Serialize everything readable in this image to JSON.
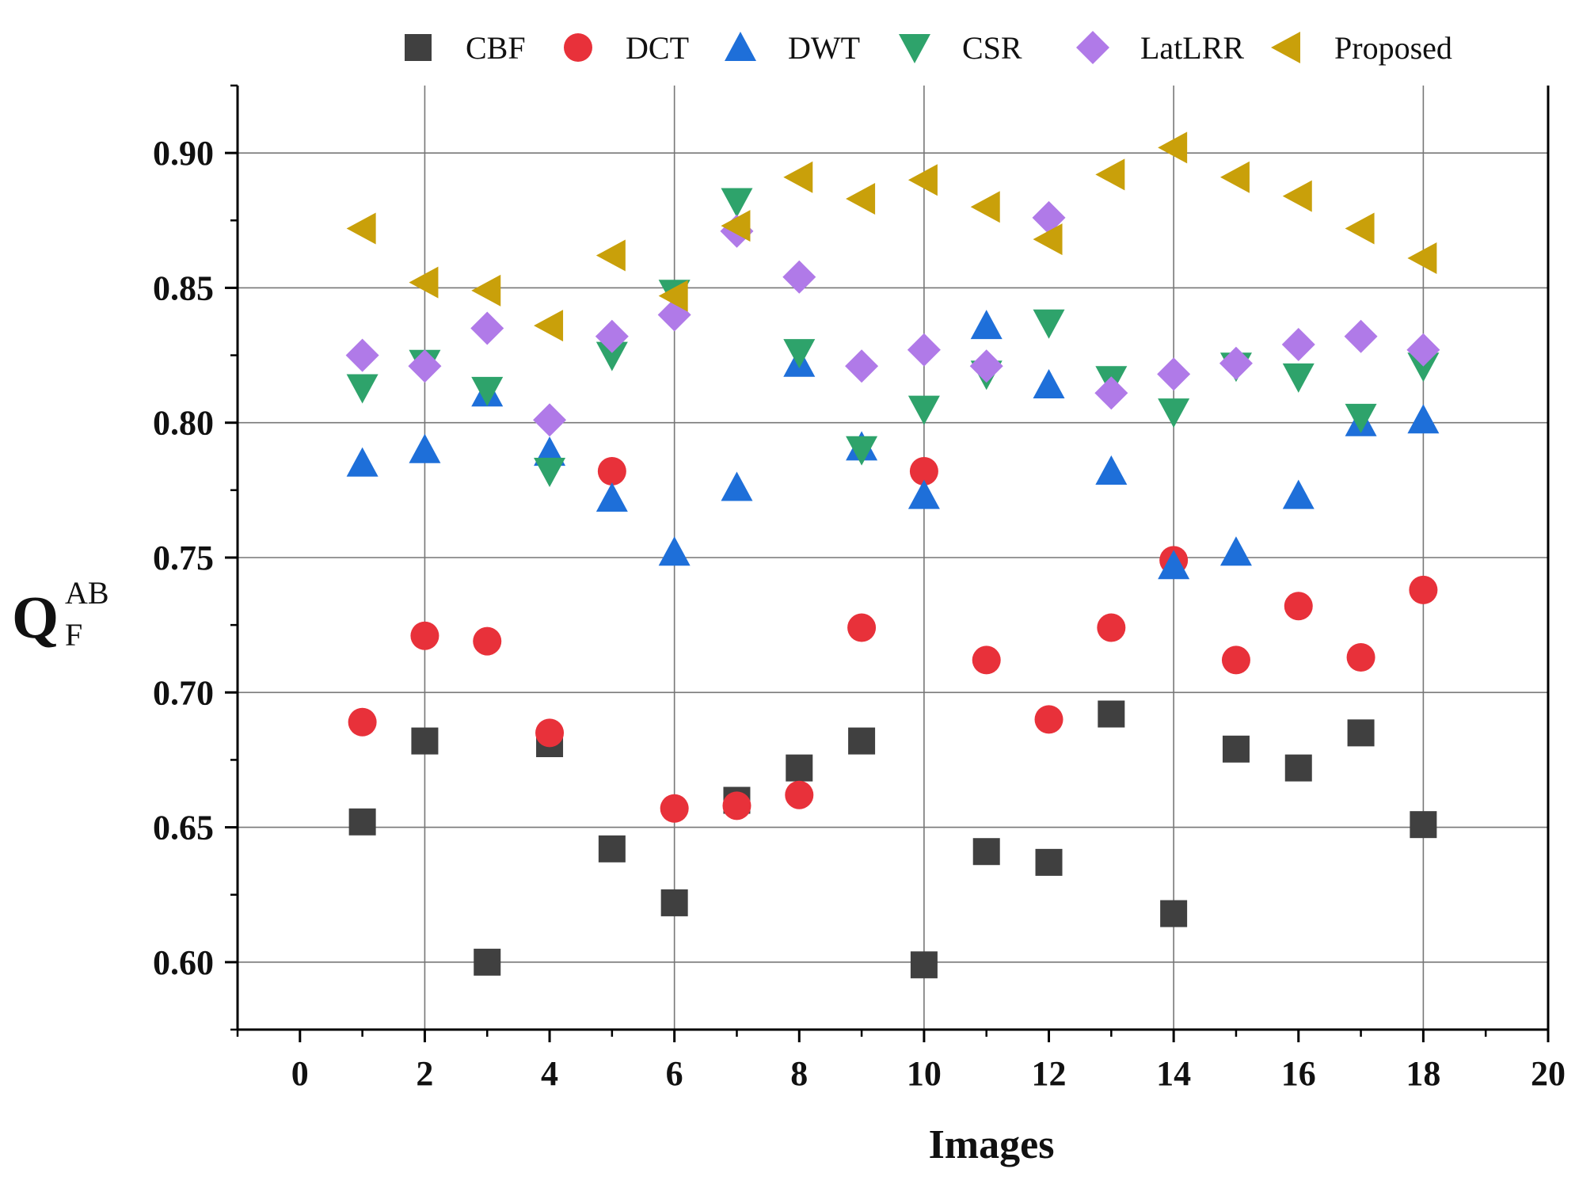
{
  "chart_data": {
    "type": "scatter",
    "title": "",
    "xlabel": "Images",
    "ylabel": {
      "main": "Q",
      "sup": "AB",
      "sub": "F"
    },
    "xlim": [
      -1,
      20
    ],
    "ylim": [
      0.575,
      0.925
    ],
    "xticks": [
      0,
      2,
      4,
      6,
      8,
      10,
      12,
      14,
      16,
      18,
      20
    ],
    "xtick_labels": [
      "0",
      "2",
      "4",
      "6",
      "8",
      "10",
      "12",
      "14",
      "16",
      "18",
      "20"
    ],
    "yticks": [
      0.6,
      0.65,
      0.7,
      0.75,
      0.8,
      0.85,
      0.9
    ],
    "ytick_labels": [
      "0.60",
      "0.65",
      "0.70",
      "0.75",
      "0.80",
      "0.85",
      "0.90"
    ],
    "grid": true,
    "legend_position": "top",
    "x": [
      1,
      2,
      3,
      4,
      5,
      6,
      7,
      8,
      9,
      10,
      11,
      12,
      13,
      14,
      15,
      16,
      17,
      18
    ],
    "series": [
      {
        "name": "CBF",
        "marker": "square",
        "color": "#404040",
        "values": [
          0.652,
          0.682,
          0.6,
          0.681,
          0.642,
          0.622,
          0.66,
          0.672,
          0.682,
          0.599,
          0.641,
          0.637,
          0.692,
          0.618,
          0.679,
          0.672,
          0.685,
          0.651
        ]
      },
      {
        "name": "DCT",
        "marker": "circle",
        "color": "#e8313a",
        "values": [
          0.689,
          0.721,
          0.719,
          0.685,
          0.782,
          0.657,
          0.658,
          0.662,
          0.724,
          0.782,
          0.712,
          0.69,
          0.724,
          0.749,
          0.712,
          0.732,
          0.713,
          0.738
        ]
      },
      {
        "name": "DWT",
        "marker": "triangle-up",
        "color": "#1e6fd9",
        "values": [
          0.785,
          0.79,
          0.811,
          0.789,
          0.772,
          0.752,
          0.776,
          0.822,
          0.791,
          0.773,
          0.836,
          0.814,
          0.782,
          0.747,
          0.752,
          0.773,
          0.8,
          0.801
        ]
      },
      {
        "name": "CSR",
        "marker": "triangle-down",
        "color": "#2ea36b",
        "values": [
          0.813,
          0.822,
          0.812,
          0.782,
          0.825,
          0.848,
          0.882,
          0.826,
          0.79,
          0.805,
          0.818,
          0.837,
          0.816,
          0.804,
          0.821,
          0.817,
          0.802,
          0.821
        ]
      },
      {
        "name": "LatLRR",
        "marker": "diamond",
        "color": "#b07ae8",
        "values": [
          0.825,
          0.821,
          0.835,
          0.801,
          0.832,
          0.84,
          0.871,
          0.854,
          0.821,
          0.827,
          0.821,
          0.876,
          0.811,
          0.818,
          0.822,
          0.829,
          0.832,
          0.827
        ]
      },
      {
        "name": "Proposed",
        "marker": "triangle-left",
        "color": "#c9a00a",
        "values": [
          0.872,
          0.852,
          0.849,
          0.836,
          0.862,
          0.847,
          0.873,
          0.891,
          0.883,
          0.89,
          0.88,
          0.868,
          0.892,
          0.902,
          0.891,
          0.884,
          0.872,
          0.861
        ]
      }
    ]
  }
}
